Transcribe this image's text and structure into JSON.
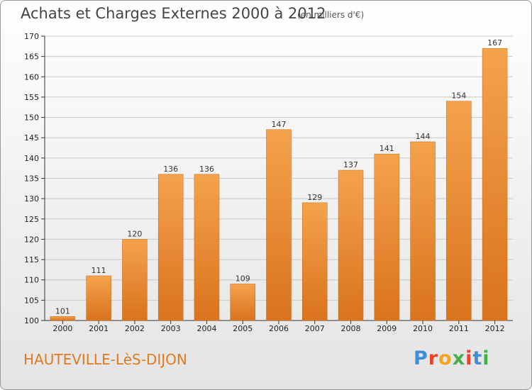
{
  "header": {
    "title": "Achats et Charges Externes 2000 à 2012",
    "subtitle": "(en milliers d'€)"
  },
  "footer": {
    "town": "HAUTEVILLE-LèS-DIJON",
    "logo": "Proxiti",
    "logo_colors": [
      "#3f8ed8",
      "#e8442c",
      "#f2a51f",
      "#43b049",
      "#e8442c",
      "#3f8ed8",
      "#43b049"
    ]
  },
  "colors": {
    "bar_top": "#f5a24c",
    "bar_bottom": "#d9731e",
    "grid": "#c8c8c8",
    "axis": "#333333"
  },
  "chart_data": {
    "type": "bar",
    "categories": [
      "2000",
      "2001",
      "2002",
      "2003",
      "2004",
      "2005",
      "2006",
      "2007",
      "2008",
      "2009",
      "2010",
      "2011",
      "2012"
    ],
    "values": [
      101,
      111,
      120,
      136,
      136,
      109,
      147,
      129,
      137,
      141,
      144,
      154,
      167
    ],
    "ylim": [
      100,
      170
    ],
    "yticks": [
      100,
      105,
      110,
      115,
      120,
      125,
      130,
      135,
      140,
      145,
      150,
      155,
      160,
      165,
      170
    ],
    "grid": true,
    "data_labels": true
  }
}
